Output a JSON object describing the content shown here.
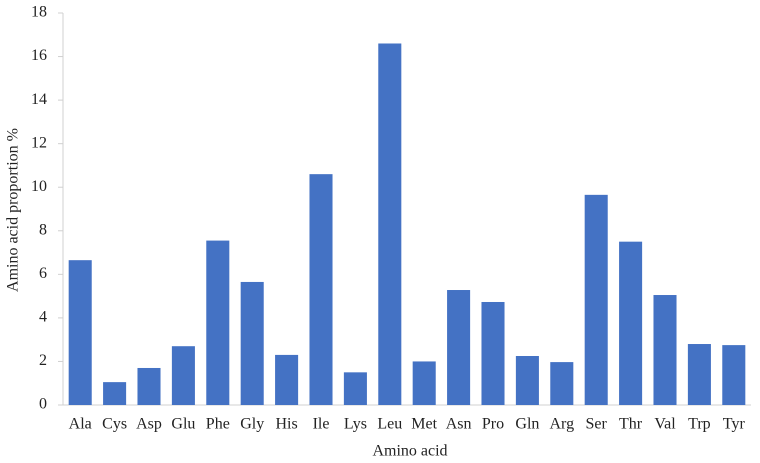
{
  "chart_data": {
    "type": "bar",
    "x_label": "Amino acid",
    "y_label": "Amino acid proportion %",
    "categories": [
      "Ala",
      "Cys",
      "Asp",
      "Glu",
      "Phe",
      "Gly",
      "His",
      "Ile",
      "Lys",
      "Leu",
      "Met",
      "Asn",
      "Pro",
      "Gln",
      "Arg",
      "Ser",
      "Thr",
      "Val",
      "Trp",
      "Tyr"
    ],
    "values": [
      6.65,
      1.05,
      1.7,
      2.7,
      7.55,
      5.65,
      2.3,
      10.6,
      1.5,
      16.6,
      2.0,
      5.28,
      4.73,
      2.25,
      1.97,
      9.65,
      7.5,
      5.05,
      2.8,
      2.75
    ],
    "color": "#4472c4",
    "ylim": [
      0,
      18
    ],
    "yticks": [
      0,
      2,
      4,
      6,
      8,
      10,
      12,
      14,
      16,
      18
    ],
    "grid": false
  }
}
